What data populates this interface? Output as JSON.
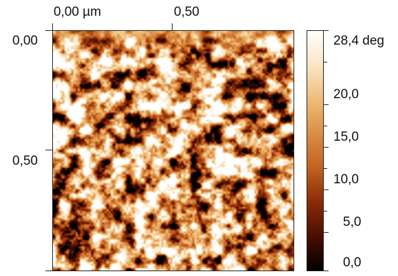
{
  "x_axis": {
    "tick_labels": [
      "0,00 µm",
      "0,50"
    ]
  },
  "y_axis": {
    "tick_labels": [
      "0,00",
      "0,50"
    ]
  },
  "colorbar": {
    "tick_labels": [
      "28,4 deg",
      "20,0",
      "15,0",
      "10,0",
      "5,0",
      "0,0"
    ],
    "colors": [
      "#000000",
      "#4a0e00",
      "#8a2b07",
      "#c2621f",
      "#dc8e45",
      "#f0bd7a",
      "#fbe6c6",
      "#ffffff"
    ]
  }
}
